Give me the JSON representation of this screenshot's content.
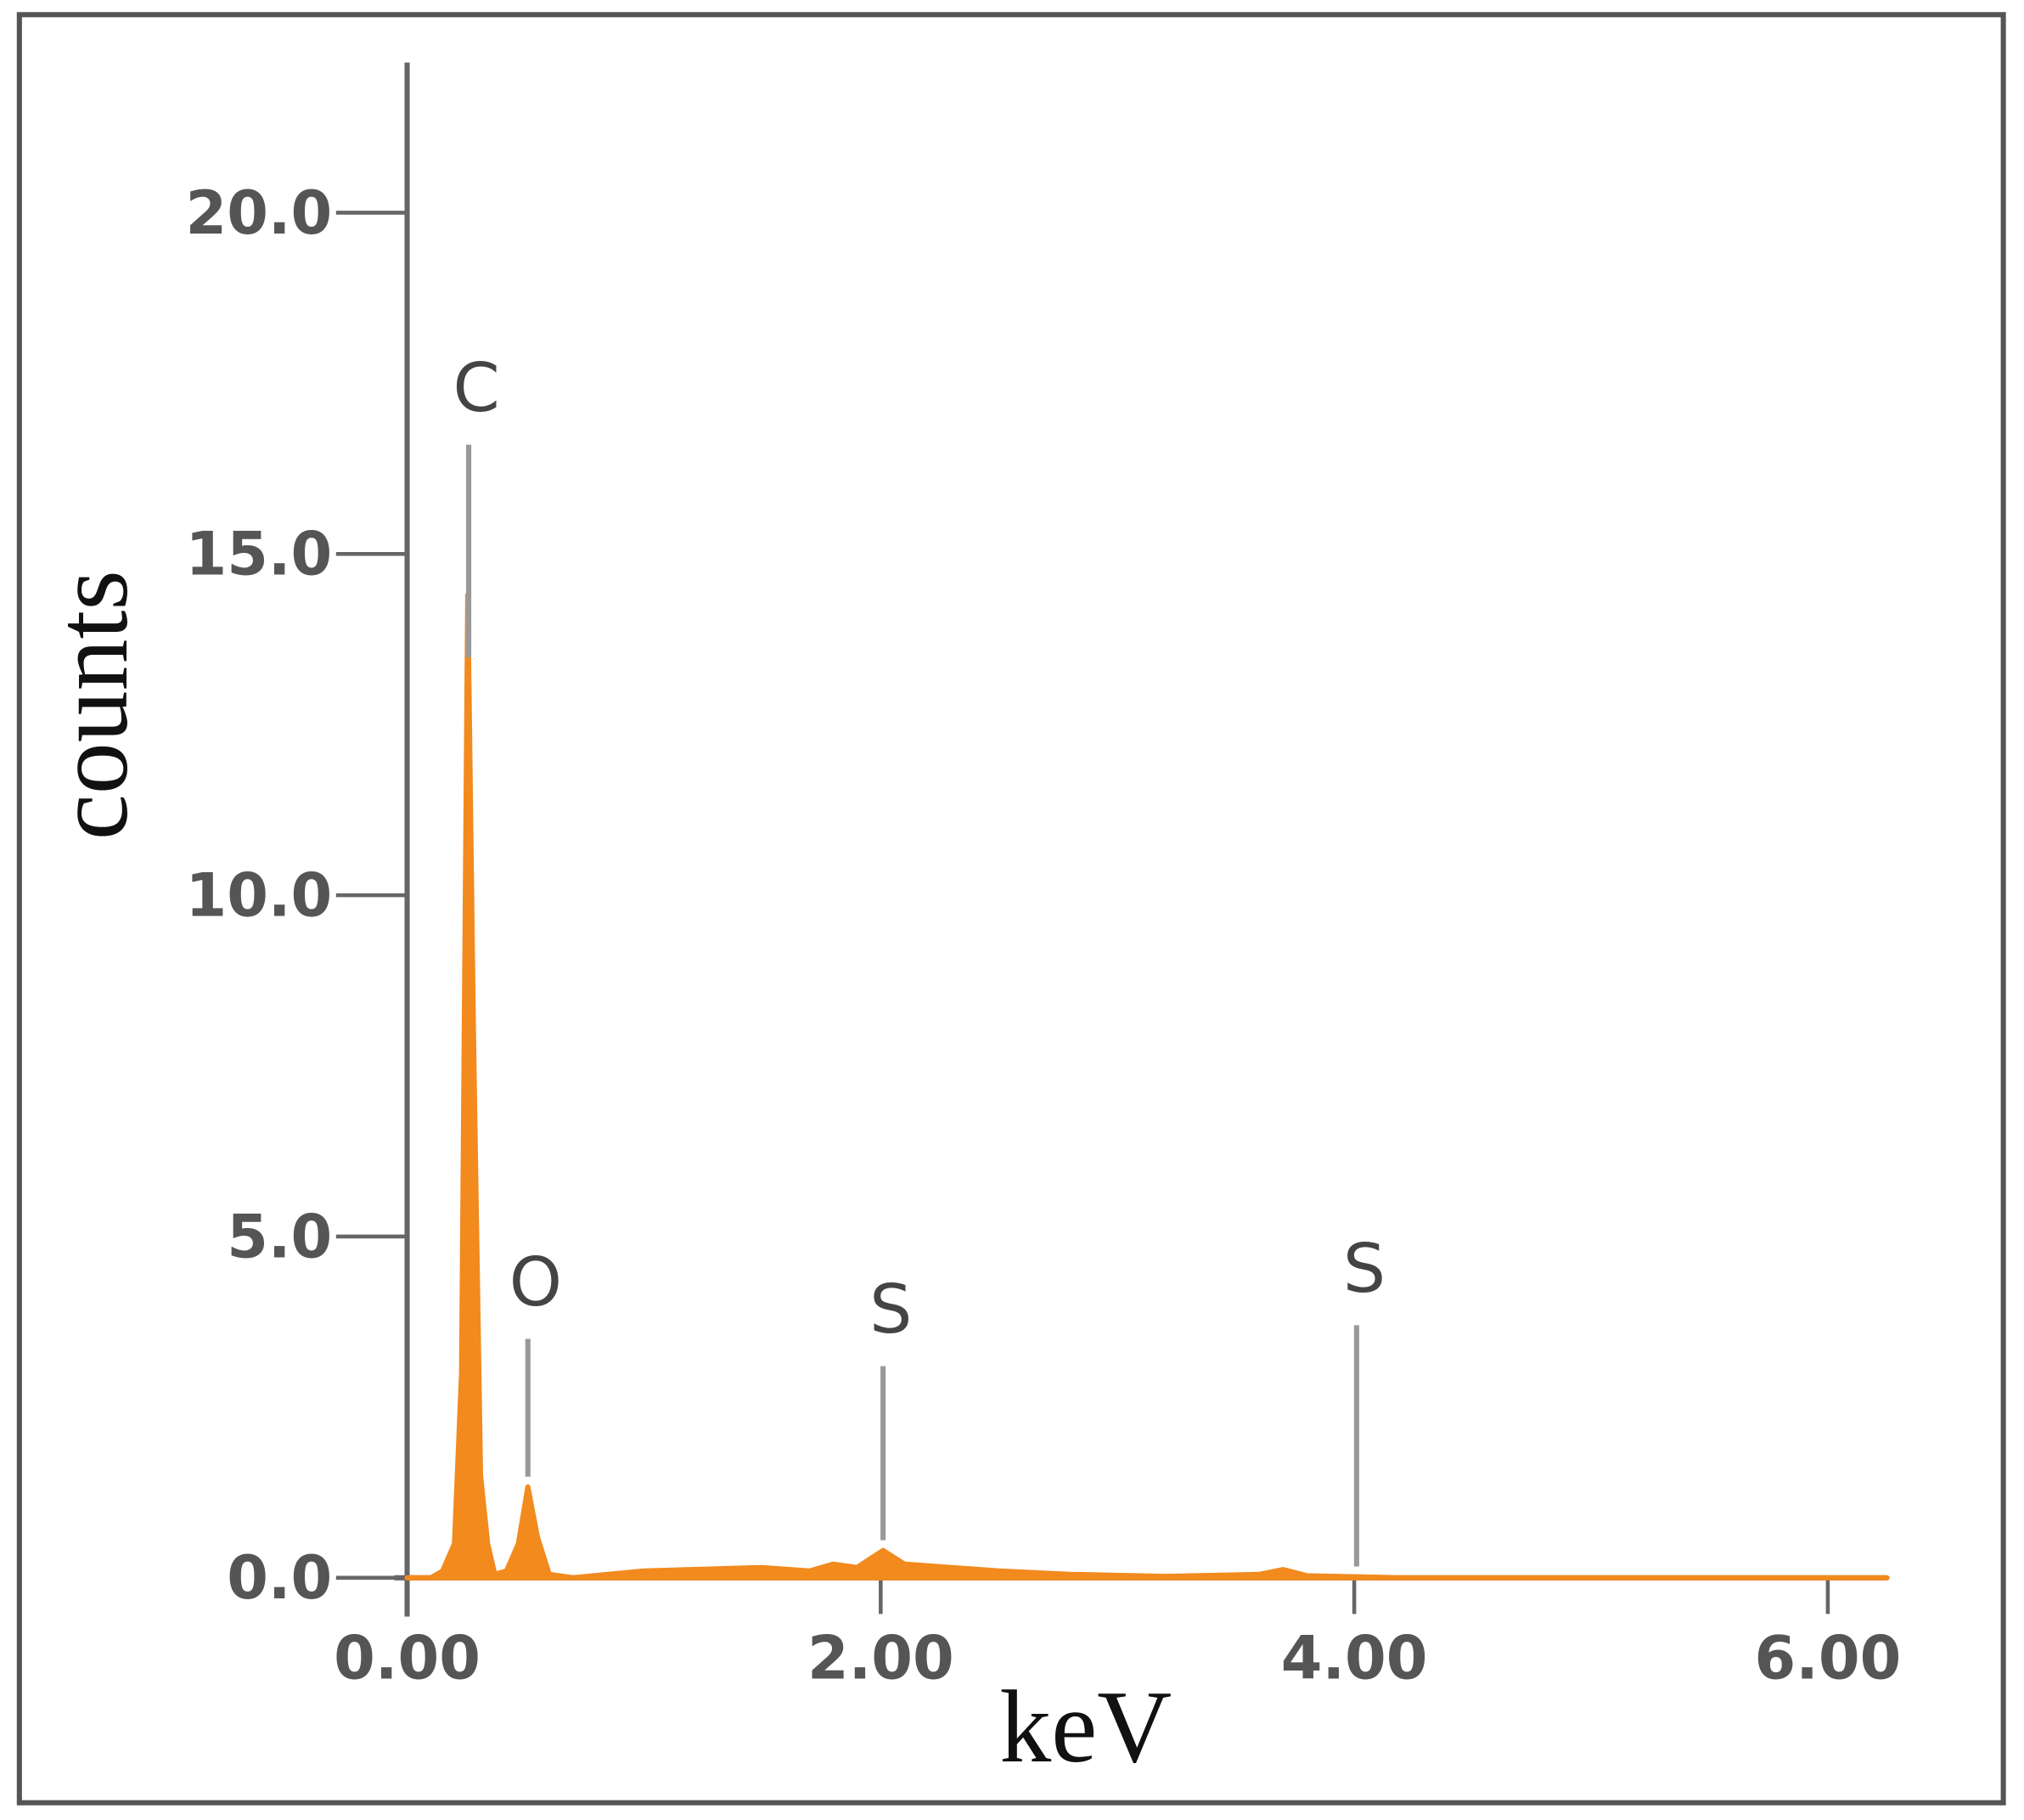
{
  "chart_data": {
    "type": "area",
    "x_label": "keV",
    "y_label": "counts",
    "color": "#f28a1e",
    "x": [
      0,
      0.1,
      0.15,
      0.2,
      0.23,
      0.256,
      0.28,
      0.31,
      0.34,
      0.37,
      0.42,
      0.47,
      0.51,
      0.55,
      0.6,
      0.7,
      1.0,
      1.5,
      1.7,
      1.8,
      1.9,
      2.01,
      2.1,
      2.3,
      2.5,
      2.8,
      3.2,
      3.6,
      3.7,
      3.8,
      4.2,
      5.0,
      6.0,
      6.25
    ],
    "values": [
      0,
      0,
      0.1,
      0.5,
      3,
      14.4,
      8,
      1.5,
      0.5,
      0.05,
      0.1,
      0.5,
      1.33,
      0.6,
      0.05,
      0,
      0.1,
      0.15,
      0.1,
      0.2,
      0.15,
      0.4,
      0.2,
      0.15,
      0.1,
      0.05,
      0.02,
      0.05,
      0.12,
      0.03,
      0,
      0,
      0,
      0
    ],
    "xlim": [
      0,
      6.25
    ],
    "ylim": [
      0,
      22.2
    ],
    "xticks": [
      {
        "value": 0,
        "label": "0.00"
      },
      {
        "value": 2,
        "label": "2.00"
      },
      {
        "value": 4,
        "label": "4.00"
      },
      {
        "value": 6,
        "label": "6.00"
      }
    ],
    "yticks": [
      {
        "value": 0,
        "label": "0.0"
      },
      {
        "value": 5,
        "label": "5.0"
      },
      {
        "value": 10,
        "label": "10.0"
      },
      {
        "value": 15,
        "label": "15.0"
      },
      {
        "value": 20,
        "label": "20.0"
      }
    ],
    "annotations": [
      {
        "text": "C",
        "x": 0.26,
        "y": 16.6
      },
      {
        "text": "O",
        "x": 0.51,
        "y": 3.5
      },
      {
        "text": "S",
        "x": 2.01,
        "y": 3.1
      },
      {
        "text": "S",
        "x": 4.01,
        "y": 3.7
      }
    ]
  }
}
